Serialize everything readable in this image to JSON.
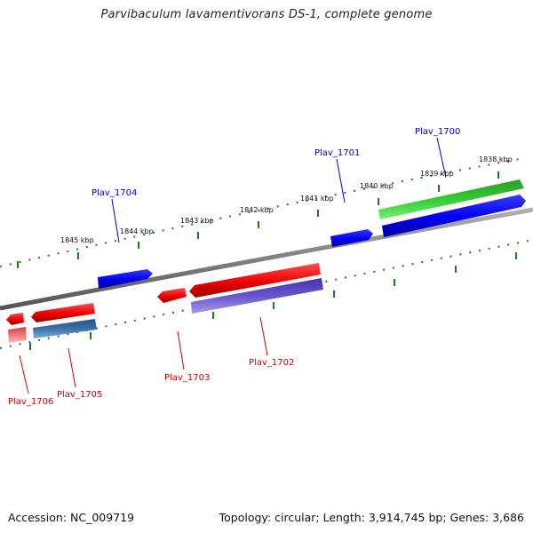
{
  "title": "Parvibaculum lavamentivorans DS-1, complete genome",
  "footer": {
    "accession": "Accession: NC_009719",
    "topology": "Topology: circular; Length: 3,914,745 bp; Genes: 3,686"
  },
  "colors": {
    "backbone": "#8a8a8a",
    "tick": "#1f7a1f",
    "forward_label": "#0000cc",
    "reverse_label": "#cc0000",
    "blue_gene": "#0000ee",
    "red_gene": "#ee0000",
    "green_gene": "#33cc33",
    "purple_gene": "#6655cc",
    "steel_gene": "#3d6fa8",
    "pink_gene": "#ee7777"
  },
  "scale": {
    "unit": "kbp",
    "labels": [
      {
        "kbp": 1838,
        "text": "1838 kbp"
      },
      {
        "kbp": 1839,
        "text": "1839 kbp"
      },
      {
        "kbp": 1840,
        "text": "1840 kbp"
      },
      {
        "kbp": 1841,
        "text": "1841 kbp"
      },
      {
        "kbp": 1842,
        "text": "1842 kbp"
      },
      {
        "kbp": 1843,
        "text": "1843 kbp"
      },
      {
        "kbp": 1844,
        "text": "1844 kbp"
      },
      {
        "kbp": 1845,
        "text": "1845 kbp"
      }
    ]
  },
  "genes": [
    {
      "label": "Plav_1700",
      "strand": "forward"
    },
    {
      "label": "Plav_1701",
      "strand": "forward"
    },
    {
      "label": "Plav_1702",
      "strand": "reverse"
    },
    {
      "label": "Plav_1703",
      "strand": "reverse"
    },
    {
      "label": "Plav_1704",
      "strand": "forward"
    },
    {
      "label": "Plav_1705",
      "strand": "reverse"
    },
    {
      "label": "Plav_1706",
      "strand": "reverse"
    }
  ]
}
